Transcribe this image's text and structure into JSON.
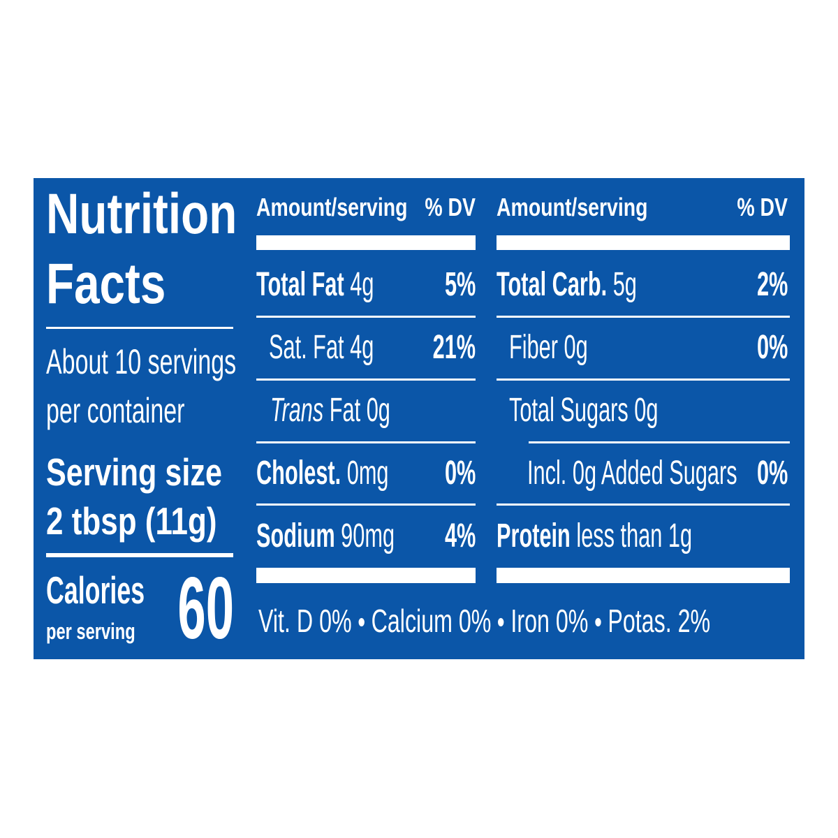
{
  "label": {
    "title": "Nutrition Facts",
    "servings": "About 10 servings per container",
    "serving_size": {
      "label": "Serving size",
      "value": "2 tbsp (11g)"
    },
    "calories": {
      "label": "Calories",
      "sublabel": "per serving",
      "value": 60
    },
    "columns": [
      {
        "header": "Amount/serving",
        "dv_header": "% DV",
        "rows": [
          {
            "name": "Total Fat",
            "amount": "4g",
            "dv": "5%"
          },
          {
            "name": "Sat. Fat",
            "amount": "4g",
            "dv": "21%"
          },
          {
            "name_italic": "Trans",
            "name": "Fat",
            "amount": "0g"
          },
          {
            "name": "Cholest.",
            "amount": "0mg",
            "dv": "0%"
          },
          {
            "name": "Sodium",
            "amount": "90mg",
            "dv": "4%"
          }
        ]
      },
      {
        "header": "Amount/serving",
        "dv_header": "% DV",
        "rows": [
          {
            "name": "Total Carb.",
            "amount": "5g",
            "dv": "2%"
          },
          {
            "name": "Fiber",
            "amount": "0g",
            "dv": "0%"
          },
          {
            "name": "Total Sugars",
            "amount": "0g"
          },
          {
            "name": "Incl. 0g Added Sugars",
            "dv": "0%"
          },
          {
            "name": "Protein",
            "amount": "less than 1g"
          }
        ]
      }
    ],
    "vitamins": [
      "Vit. D 0%",
      "Calcium 0%",
      "Iron 0%",
      "Potas. 2%"
    ]
  }
}
